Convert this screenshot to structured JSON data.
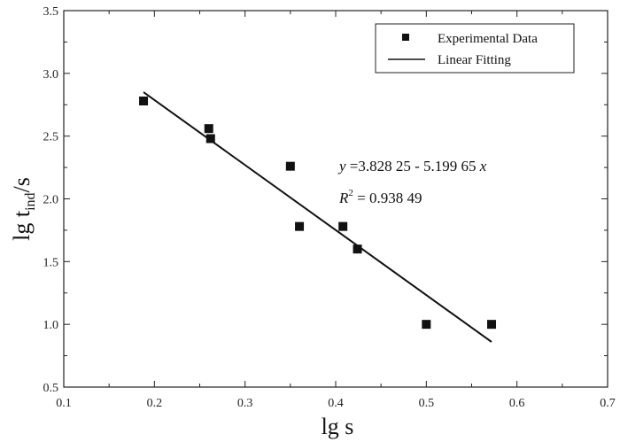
{
  "chart_data": {
    "type": "scatter",
    "xlabel": "lg s",
    "ylabel": {
      "base": "lg t",
      "subscript": "ind",
      "suffix": "/s"
    },
    "xlim": [
      0.1,
      0.7
    ],
    "ylim": [
      0.5,
      3.5
    ],
    "xticks": [
      "0.1",
      "0.2",
      "0.3",
      "0.4",
      "0.5",
      "0.6",
      "0.7"
    ],
    "yticks": [
      "0.5",
      "1.0",
      "1.5",
      "2.0",
      "2.5",
      "3.0",
      "3.5"
    ],
    "grid": false,
    "legend_position": "top-right",
    "series": [
      {
        "name": "Experimental Data",
        "marker": "square",
        "x": [
          0.188,
          0.26,
          0.262,
          0.35,
          0.36,
          0.408,
          0.424,
          0.5,
          0.572
        ],
        "y": [
          2.78,
          2.56,
          2.48,
          2.26,
          1.78,
          1.78,
          1.6,
          1.0,
          1.0
        ]
      },
      {
        "name": "Linear Fitting",
        "style": "line",
        "x": [
          0.188,
          0.572
        ],
        "y": [
          2.85,
          0.86
        ]
      }
    ],
    "annotations": {
      "equation": {
        "y_var": "y",
        "rhs": " =3.828 25 - 5.199 65 ",
        "x_var": "x"
      },
      "r2": {
        "var": "R",
        "sup": "2",
        "rhs": " = 0.938 49"
      }
    },
    "colors": {
      "marker": "#111111",
      "line": "#111111",
      "axis": "#222222"
    }
  }
}
